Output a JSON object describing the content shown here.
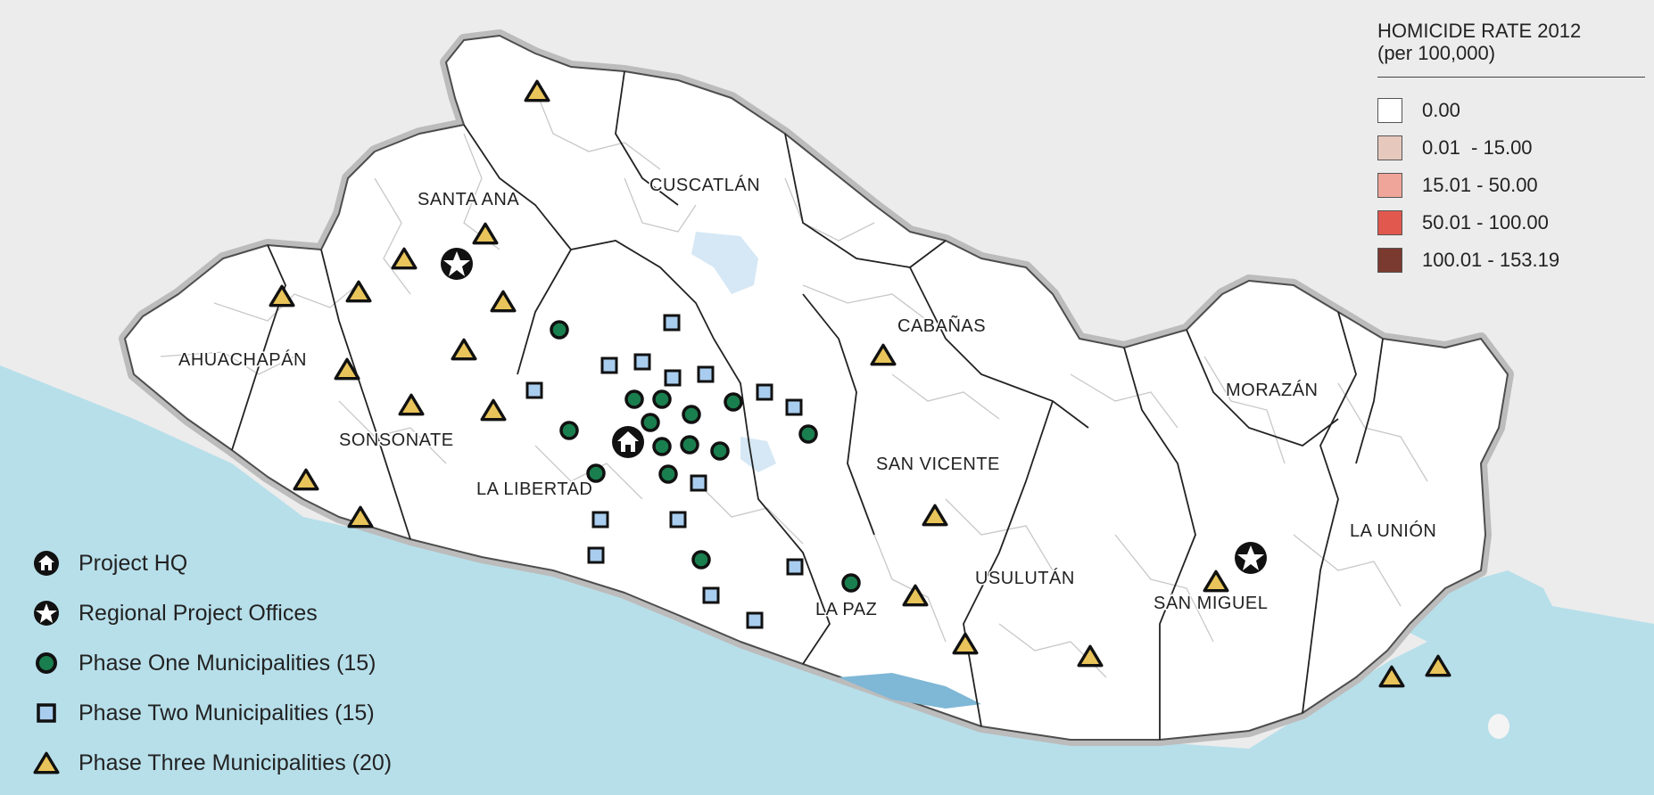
{
  "map": {
    "departments": [
      {
        "id": "ahuachapan",
        "name": "AHUACHAPÁN"
      },
      {
        "id": "santa-ana",
        "name": "SANTA ANA"
      },
      {
        "id": "sonsonate",
        "name": "SONSONATE"
      },
      {
        "id": "la-libertad",
        "name": "LA LIBERTAD"
      },
      {
        "id": "cuscatlan",
        "name": "CUSCATLÁN"
      },
      {
        "id": "cabanas",
        "name": "CABAÑAS"
      },
      {
        "id": "san-vicente",
        "name": "SAN VICENTE"
      },
      {
        "id": "la-paz",
        "name": "LA PAZ"
      },
      {
        "id": "usulutan",
        "name": "USULUTÁN"
      },
      {
        "id": "san-miguel",
        "name": "SAN MIGUEL"
      },
      {
        "id": "morazan",
        "name": "MORAZÁN"
      },
      {
        "id": "la-union",
        "name": "LA UNIÓN"
      }
    ],
    "colors": {
      "sea": "#b7dfea",
      "land": "#ffffff",
      "border_gray": "#b9b9b9",
      "municipal_lines": "#c8c8c8",
      "department_lines": "#222222",
      "lake": "#d6e8f5",
      "phase_one": "#1a7f4e",
      "phase_two": "#a9cdee",
      "phase_three": "#e8c45a"
    }
  },
  "homicide_legend": {
    "title_line1": "HOMICIDE RATE 2012",
    "title_line2": "(per 100,000)",
    "classes": [
      {
        "label": "0.00",
        "color": "#ffffff"
      },
      {
        "label": "0.01  - 15.00",
        "color": "#e6c8bd"
      },
      {
        "label": "15.01 - 50.00",
        "color": "#efa599"
      },
      {
        "label": "50.01 - 100.00",
        "color": "#e0584e"
      },
      {
        "label": "100.01 - 153.19",
        "color": "#7a3a30"
      }
    ]
  },
  "symbol_legend": {
    "items": [
      {
        "icon": "home-icon",
        "label": "Project HQ"
      },
      {
        "icon": "star-icon",
        "label": "Regional Project Offices"
      },
      {
        "icon": "green-circle-icon",
        "label": "Phase One Municipalities (15)"
      },
      {
        "icon": "blue-square-icon",
        "label": "Phase Two Municipalities (15)"
      },
      {
        "icon": "yellow-triangle-icon",
        "label": "Phase Three Municipalities (20)"
      }
    ]
  }
}
